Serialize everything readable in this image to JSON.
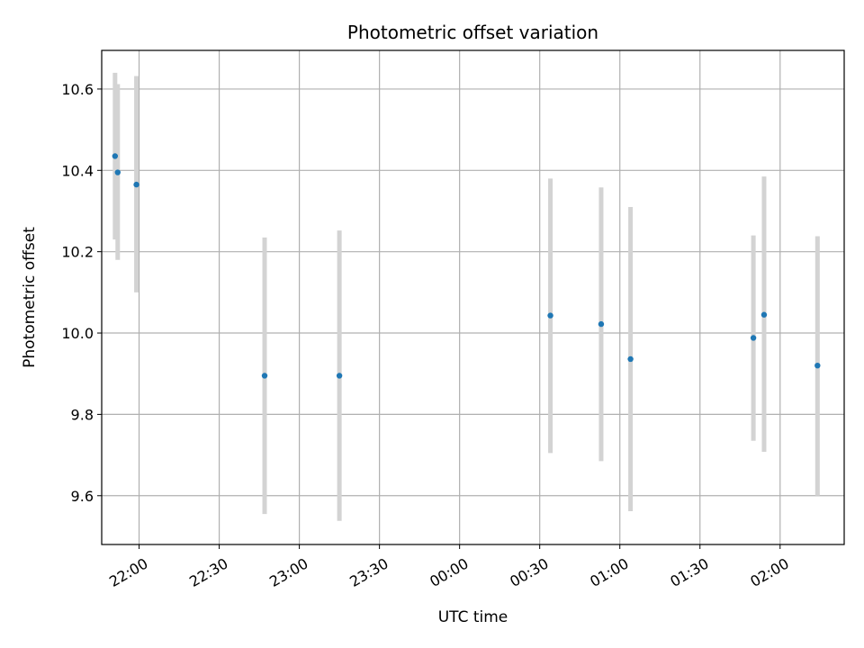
{
  "chart_data": {
    "type": "scatter",
    "title": "Photometric offset variation",
    "xlabel": "UTC time",
    "ylabel": "Photometric offset",
    "xlim": [
      "21:46",
      "02:24"
    ],
    "ylim": [
      9.48,
      10.695
    ],
    "grid": true,
    "x_ticks": [
      "22:00",
      "22:30",
      "23:00",
      "23:30",
      "00:00",
      "00:30",
      "01:00",
      "01:30",
      "02:00"
    ],
    "y_ticks": [
      9.6,
      9.8,
      10.0,
      10.2,
      10.4,
      10.6
    ],
    "y_tick_labels": [
      "9.6",
      "9.8",
      "10.0",
      "10.2",
      "10.4",
      "10.6"
    ],
    "series": [
      {
        "color": "#1f77b4",
        "errorbar_color": "#d3d3d3",
        "points": [
          {
            "x": "21:51",
            "y": 10.435,
            "ylow": 10.23,
            "yhigh": 10.64
          },
          {
            "x": "21:52",
            "y": 10.395,
            "ylow": 10.18,
            "yhigh": 10.612
          },
          {
            "x": "21:59",
            "y": 10.365,
            "ylow": 10.1,
            "yhigh": 10.632
          },
          {
            "x": "22:47",
            "y": 9.895,
            "ylow": 9.555,
            "yhigh": 10.235
          },
          {
            "x": "23:15",
            "y": 9.895,
            "ylow": 9.538,
            "yhigh": 10.252
          },
          {
            "x": "00:34",
            "y": 10.043,
            "ylow": 9.705,
            "yhigh": 10.38
          },
          {
            "x": "00:53",
            "y": 10.022,
            "ylow": 9.685,
            "yhigh": 10.358
          },
          {
            "x": "01:04",
            "y": 9.936,
            "ylow": 9.562,
            "yhigh": 10.31
          },
          {
            "x": "01:50",
            "y": 9.988,
            "ylow": 9.735,
            "yhigh": 10.24
          },
          {
            "x": "01:54",
            "y": 10.045,
            "ylow": 9.708,
            "yhigh": 10.385
          },
          {
            "x": "02:14",
            "y": 9.92,
            "ylow": 9.6,
            "yhigh": 10.238
          }
        ]
      }
    ]
  }
}
